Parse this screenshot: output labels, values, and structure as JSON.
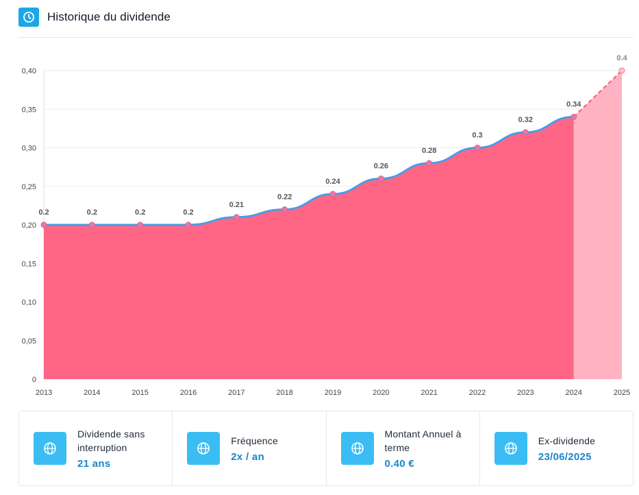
{
  "header": {
    "title": "Historique du dividende",
    "icon": "clock-icon",
    "icon_color": "#1ba7e6"
  },
  "chart_data": {
    "type": "area",
    "title": "",
    "xlabel": "",
    "ylabel": "",
    "x": [
      "2013",
      "2014",
      "2015",
      "2016",
      "2017",
      "2018",
      "2019",
      "2020",
      "2021",
      "2022",
      "2023",
      "2024",
      "2025"
    ],
    "series": [
      {
        "values": [
          0.2,
          0.2,
          0.2,
          0.2,
          0.21,
          0.22,
          0.24,
          0.26,
          0.28,
          0.3,
          0.32,
          0.34,
          0.4
        ],
        "data_labels": [
          "0.2",
          "0.2",
          "0.2",
          "0.2",
          "0.21",
          "0.22",
          "0.24",
          "0.26",
          "0.28",
          "0.3",
          "0.32",
          "0.34",
          "0.4"
        ],
        "forecast_from_index": 11
      }
    ],
    "ylim": [
      0,
      0.4
    ],
    "yticks": [
      0,
      0.05,
      0.1,
      0.15,
      0.2,
      0.25,
      0.3,
      0.35,
      0.4
    ],
    "ytick_labels": [
      "0",
      "0,05",
      "0,10",
      "0,15",
      "0,20",
      "0,25",
      "0,30",
      "0,35",
      "0,40"
    ],
    "grid": true,
    "colors": {
      "area": "#ff6685",
      "forecast_area": "#ffb3c2",
      "line": "#4a9be8",
      "forecast_line": "#f2708c",
      "marker": "#e879a4",
      "label": "#555555"
    }
  },
  "stats": [
    {
      "icon": "globe-icon",
      "label": "Dividende sans interruption",
      "value": "21 ans"
    },
    {
      "icon": "globe-icon",
      "label": "Fréquence",
      "value": "2x / an"
    },
    {
      "icon": "globe-icon",
      "label": "Montant Annuel à terme",
      "value": "0.40 €"
    },
    {
      "icon": "globe-icon",
      "label": "Ex-dividende",
      "value": "23/06/2025"
    }
  ],
  "colors": {
    "stat_icon_bg": "#3bbdf3",
    "stat_value": "#1a86c9"
  }
}
